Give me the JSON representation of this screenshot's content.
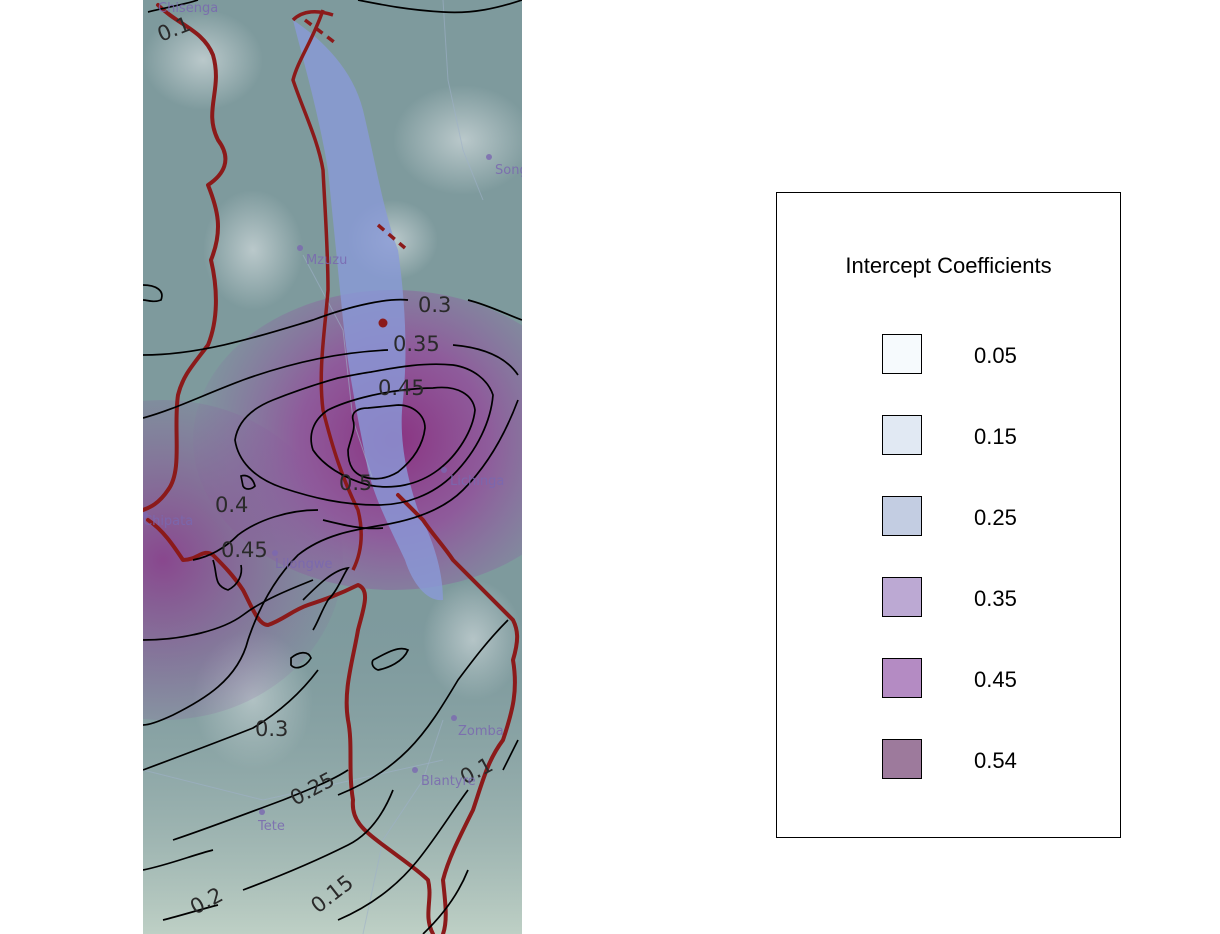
{
  "map": {
    "places": [
      "Chisenga",
      "Songea",
      "Mzuzu",
      "Chipata",
      "Lilongwe",
      "Lichinga",
      "Zomba",
      "Blantyre",
      "Tete"
    ],
    "contour_labels": [
      "0.1",
      "0.3",
      "0.35",
      "0.45",
      "0.4",
      "0.5",
      "0.45",
      "0.3",
      "0.25",
      "0.1",
      "0.2",
      "0.15"
    ],
    "colors": {
      "boundary": "#8b1a1a",
      "lake": "#8a9ad8",
      "terrain": "#7f9a9a",
      "high": "#8e3f8a"
    }
  },
  "legend": {
    "title": "Intercept Coefficients",
    "items": [
      {
        "label": "0.05",
        "color": "#f6fafd"
      },
      {
        "label": "0.15",
        "color": "#e1e9f3"
      },
      {
        "label": "0.25",
        "color": "#c3cde2"
      },
      {
        "label": "0.35",
        "color": "#bca9d3"
      },
      {
        "label": "0.45",
        "color": "#b48bc3"
      },
      {
        "label": "0.54",
        "color": "#9d7a9c"
      }
    ]
  }
}
